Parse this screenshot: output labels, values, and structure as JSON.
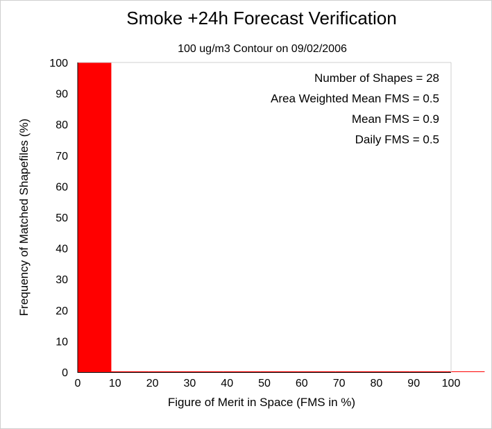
{
  "chart_data": {
    "type": "bar",
    "title": "Smoke +24h Forecast Verification",
    "subtitle": "100 ug/m3 Contour on 09/02/2006",
    "xlabel": "Figure of Merit in Space (FMS in %)",
    "ylabel": "Frequency of Matched Shapefiles (%)",
    "xlim": [
      0,
      100
    ],
    "ylim": [
      0,
      100
    ],
    "xticks": [
      "0",
      "10",
      "20",
      "30",
      "40",
      "50",
      "60",
      "70",
      "80",
      "90",
      "100"
    ],
    "yticks": [
      "0",
      "10",
      "20",
      "30",
      "40",
      "50",
      "60",
      "70",
      "80",
      "90",
      "100"
    ],
    "bins": [
      {
        "from": 0,
        "to": 9,
        "value": 100
      },
      {
        "from": 9,
        "to": 19,
        "value": 0
      },
      {
        "from": 19,
        "to": 29,
        "value": 0
      },
      {
        "from": 29,
        "to": 39,
        "value": 0
      },
      {
        "from": 39,
        "to": 49,
        "value": 0
      },
      {
        "from": 49,
        "to": 59,
        "value": 0
      },
      {
        "from": 59,
        "to": 69,
        "value": 0
      },
      {
        "from": 69,
        "to": 79,
        "value": 0
      },
      {
        "from": 79,
        "to": 89,
        "value": 0
      },
      {
        "from": 89,
        "to": 99,
        "value": 0
      },
      {
        "from": 99,
        "to": 109,
        "value": 0
      }
    ],
    "bar_color": "#ff0000",
    "annotations": [
      "Number of Shapes = 28",
      "Area Weighted Mean FMS = 0.5",
      "Mean FMS = 0.9",
      "Daily FMS = 0.5"
    ],
    "grid": false
  }
}
